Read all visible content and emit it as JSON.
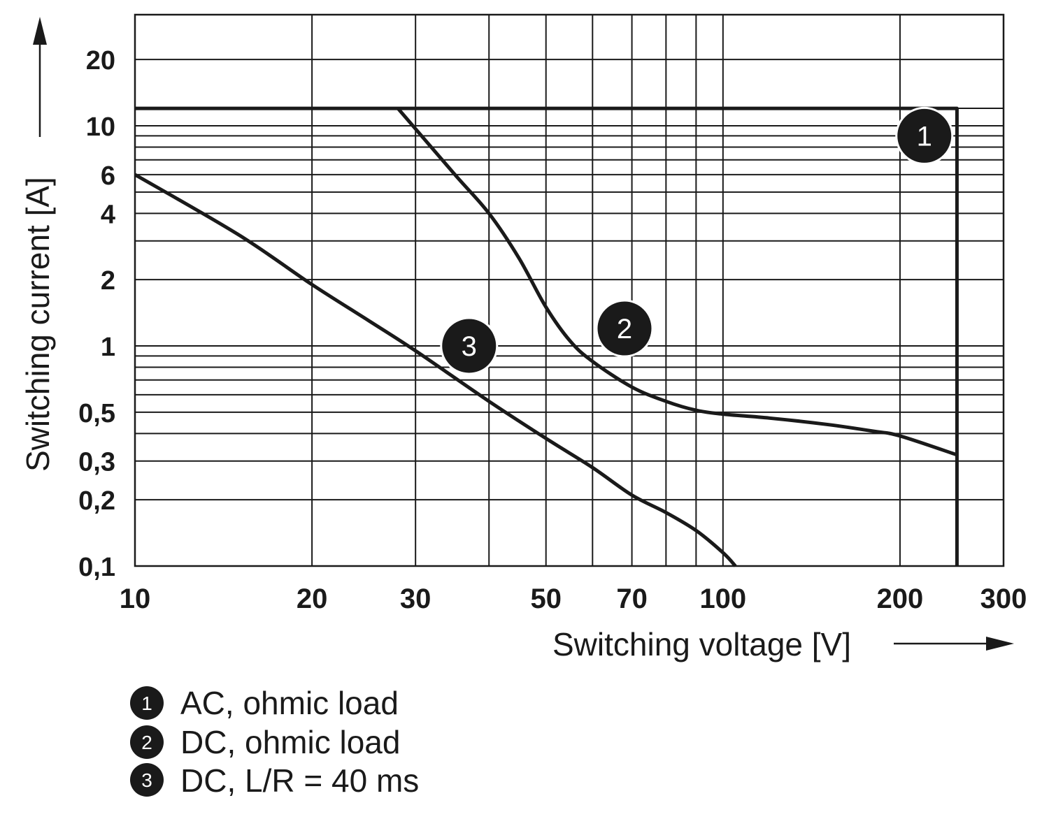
{
  "chart_data": {
    "type": "line",
    "xlabel": "Switching voltage [V]",
    "ylabel": "Switching current [A]",
    "x_scale": "log",
    "y_scale": "log",
    "xlim": [
      10,
      300
    ],
    "ylim": [
      0.1,
      30
    ],
    "grid": true,
    "x_ticks": [
      10,
      20,
      30,
      50,
      70,
      100,
      200,
      300
    ],
    "x_tick_labels": [
      "10",
      "20",
      "30",
      "50",
      "70",
      "100",
      "200",
      "300"
    ],
    "x_gridlines": [
      20,
      30,
      40,
      50,
      60,
      70,
      80,
      90,
      100,
      200
    ],
    "y_ticks": [
      20,
      10,
      6,
      4,
      2,
      1,
      0.5,
      0.3,
      0.2,
      0.1
    ],
    "y_tick_labels": [
      "20",
      "10",
      "6",
      "4",
      "2",
      "1",
      "0,5",
      "0,3",
      "0,2",
      "0,1"
    ],
    "y_gridlines": [
      20,
      12,
      10,
      9,
      8,
      7,
      6,
      5,
      4,
      3,
      2,
      1,
      0.9,
      0.8,
      0.7,
      0.6,
      0.5,
      0.4,
      0.3,
      0.2
    ],
    "series": [
      {
        "marker": "1",
        "name": "AC, ohmic load",
        "x": [
          10,
          250,
          250
        ],
        "y": [
          12,
          12,
          0.1
        ],
        "label_at": [
          220,
          9
        ]
      },
      {
        "marker": "2",
        "name": "DC, ohmic load",
        "x": [
          28,
          35,
          40,
          45,
          50,
          55,
          60,
          70,
          80,
          90,
          100,
          120,
          150,
          180,
          200,
          250
        ],
        "y": [
          12,
          6,
          4,
          2.5,
          1.5,
          1.05,
          0.85,
          0.65,
          0.56,
          0.51,
          0.49,
          0.47,
          0.44,
          0.41,
          0.39,
          0.32
        ],
        "label_at": [
          68,
          1.2
        ]
      },
      {
        "marker": "3",
        "name": "DC, L/R = 40 ms",
        "x": [
          10,
          15,
          20,
          25,
          30,
          40,
          50,
          60,
          70,
          80,
          90,
          100,
          105
        ],
        "y": [
          6,
          3.2,
          1.9,
          1.3,
          0.95,
          0.56,
          0.38,
          0.28,
          0.21,
          0.175,
          0.145,
          0.115,
          0.1
        ],
        "label_at": [
          37,
          1.0
        ]
      }
    ]
  },
  "legend": [
    {
      "num": "1",
      "text": "AC, ohmic load"
    },
    {
      "num": "2",
      "text": "DC, ohmic load"
    },
    {
      "num": "3",
      "text": "DC, L/R = 40 ms"
    }
  ]
}
